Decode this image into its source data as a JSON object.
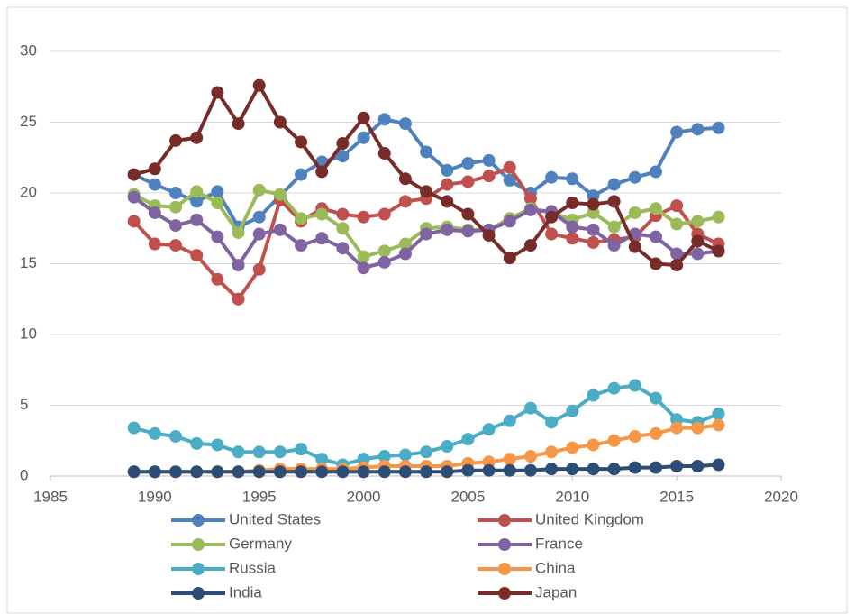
{
  "chart_data": {
    "type": "line",
    "x": [
      1989,
      1990,
      1991,
      1992,
      1993,
      1994,
      1995,
      1996,
      1997,
      1998,
      1999,
      2000,
      2001,
      2002,
      2003,
      2004,
      2005,
      2006,
      2007,
      2008,
      2009,
      2010,
      2011,
      2012,
      2013,
      2014,
      2015,
      2016,
      2017
    ],
    "xlim": [
      1985,
      2020
    ],
    "xticks": [
      1985,
      1990,
      1995,
      2000,
      2005,
      2010,
      2015,
      2020
    ],
    "ylim": [
      0,
      30
    ],
    "yticks": [
      0,
      5,
      10,
      15,
      20,
      25,
      30
    ],
    "grid": true,
    "legend": "bottom",
    "series": [
      {
        "name": "United States",
        "color": "#4f81bd",
        "values": [
          21.3,
          20.6,
          20.0,
          19.4,
          20.1,
          17.6,
          18.3,
          19.8,
          21.3,
          22.2,
          22.6,
          23.9,
          25.2,
          24.9,
          22.9,
          21.6,
          22.1,
          22.3,
          20.9,
          20.0,
          21.1,
          21.0,
          19.8,
          20.6,
          21.1,
          21.5,
          24.3,
          24.5,
          24.6
        ]
      },
      {
        "name": "United Kingdom",
        "color": "#c0504d",
        "values": [
          18.0,
          16.4,
          16.3,
          15.6,
          13.9,
          12.5,
          14.6,
          19.5,
          18.0,
          18.9,
          18.5,
          18.3,
          18.5,
          19.4,
          19.6,
          20.6,
          20.8,
          21.2,
          21.8,
          19.6,
          17.1,
          16.8,
          16.5,
          16.7,
          16.9,
          18.4,
          19.1,
          17.1,
          16.4
        ]
      },
      {
        "name": "Germany",
        "color": "#9bbb59",
        "values": [
          19.9,
          19.1,
          19.0,
          20.1,
          19.3,
          17.2,
          20.2,
          19.9,
          18.2,
          18.5,
          17.5,
          15.5,
          15.9,
          16.4,
          17.5,
          17.6,
          17.4,
          17.4,
          18.2,
          18.9,
          18.6,
          18.1,
          18.6,
          17.6,
          18.6,
          18.9,
          17.8,
          18.0,
          18.3
        ]
      },
      {
        "name": "France",
        "color": "#8064a2",
        "values": [
          19.7,
          18.6,
          17.7,
          18.1,
          16.9,
          14.9,
          17.1,
          17.4,
          16.3,
          16.8,
          16.1,
          14.7,
          15.1,
          15.7,
          17.1,
          17.4,
          17.3,
          17.4,
          18.0,
          18.8,
          18.7,
          17.6,
          17.4,
          16.3,
          17.1,
          16.9,
          15.7,
          15.7,
          15.9
        ]
      },
      {
        "name": "Russia",
        "color": "#4bacc6",
        "values": [
          3.4,
          3.0,
          2.8,
          2.3,
          2.2,
          1.7,
          1.7,
          1.7,
          1.9,
          1.2,
          0.8,
          1.2,
          1.4,
          1.5,
          1.7,
          2.1,
          2.6,
          3.3,
          3.9,
          4.8,
          3.8,
          4.6,
          5.7,
          6.2,
          6.4,
          5.5,
          4.0,
          3.8,
          4.4
        ]
      },
      {
        "name": "China",
        "color": "#f79646",
        "values": [
          0.3,
          0.3,
          0.3,
          0.3,
          0.3,
          0.3,
          0.4,
          0.5,
          0.5,
          0.5,
          0.5,
          0.6,
          0.7,
          0.7,
          0.7,
          0.7,
          0.9,
          1.0,
          1.2,
          1.4,
          1.7,
          2.0,
          2.2,
          2.5,
          2.8,
          3.0,
          3.4,
          3.4,
          3.6
        ]
      },
      {
        "name": "India",
        "color": "#2c4d75",
        "values": [
          0.3,
          0.3,
          0.3,
          0.3,
          0.3,
          0.3,
          0.3,
          0.3,
          0.3,
          0.3,
          0.3,
          0.3,
          0.3,
          0.3,
          0.3,
          0.3,
          0.4,
          0.4,
          0.4,
          0.4,
          0.5,
          0.5,
          0.5,
          0.5,
          0.6,
          0.6,
          0.7,
          0.7,
          0.8
        ]
      },
      {
        "name": "Japan",
        "color": "#772c2a",
        "values": [
          21.3,
          21.7,
          23.7,
          23.9,
          27.1,
          24.9,
          27.6,
          25.0,
          23.6,
          21.5,
          23.5,
          25.3,
          22.8,
          21.0,
          20.1,
          19.4,
          18.5,
          17.0,
          15.4,
          16.3,
          18.3,
          19.3,
          19.2,
          19.4,
          16.2,
          15.0,
          14.9,
          16.6,
          15.9
        ]
      }
    ]
  }
}
